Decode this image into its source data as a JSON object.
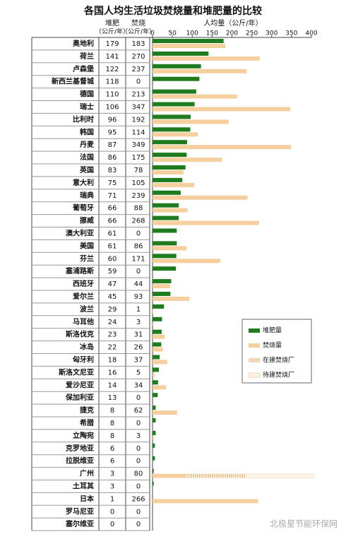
{
  "chart_data": {
    "type": "bar",
    "orientation": "horizontal",
    "title": "各国人均生活垃圾焚烧量和堆肥量的比较",
    "column_headers": [
      {
        "name": "堆肥",
        "unit": "（公斤/年）"
      },
      {
        "name": "焚烧",
        "unit": "（公斤/年）"
      }
    ],
    "xlabel": "人均量（公斤/年）",
    "xlim": [
      0,
      400
    ],
    "xticks": [
      0,
      50,
      100,
      150,
      200,
      250,
      300,
      350,
      400
    ],
    "categories": [
      "奥地利",
      "荷兰",
      "卢森堡",
      "新西兰基督城",
      "德国",
      "瑞士",
      "比利时",
      "韩国",
      "丹麦",
      "法国",
      "英国",
      "意大利",
      "瑞典",
      "葡萄牙",
      "挪威",
      "澳大利亚",
      "美国",
      "芬兰",
      "塞浦路斯",
      "西班牙",
      "爱尔兰",
      "波兰",
      "马耳他",
      "斯洛伐克",
      "冰岛",
      "匈牙利",
      "斯洛文尼亚",
      "爱沙尼亚",
      "保加利亚",
      "捷克",
      "希腊",
      "立陶宛",
      "克罗地亚",
      "拉脱维亚",
      "广州",
      "土耳其",
      "日本",
      "罗马尼亚",
      "塞尔维亚"
    ],
    "series": [
      {
        "name": "堆肥量",
        "color": "#1e7b1e",
        "values": [
          179,
          141,
          122,
          118,
          110,
          106,
          96,
          95,
          87,
          86,
          83,
          75,
          71,
          66,
          66,
          61,
          61,
          60,
          59,
          47,
          45,
          29,
          24,
          23,
          22,
          18,
          16,
          14,
          13,
          8,
          8,
          8,
          6,
          6,
          3,
          3,
          1,
          0,
          0
        ]
      },
      {
        "name": "焚烧量",
        "color": "#f5cf9e",
        "values": [
          183,
          270,
          237,
          0,
          213,
          347,
          192,
          114,
          349,
          175,
          78,
          105,
          239,
          88,
          268,
          0,
          86,
          171,
          0,
          44,
          93,
          1,
          3,
          31,
          26,
          37,
          5,
          34,
          0,
          62,
          0,
          3,
          0,
          0,
          80,
          0,
          266,
          0,
          0
        ]
      },
      {
        "name": "在建焚烧厂",
        "color": "#f0c896",
        "values": [
          null,
          null,
          null,
          null,
          null,
          null,
          null,
          null,
          null,
          null,
          null,
          null,
          null,
          null,
          null,
          null,
          null,
          null,
          null,
          null,
          null,
          null,
          null,
          null,
          null,
          null,
          null,
          null,
          null,
          null,
          null,
          null,
          null,
          null,
          155,
          null,
          null,
          null,
          null
        ]
      },
      {
        "name": "待建焚烧厂",
        "color": "#fdf3e4",
        "values": [
          null,
          null,
          null,
          null,
          null,
          null,
          null,
          null,
          null,
          null,
          null,
          null,
          null,
          null,
          null,
          null,
          null,
          null,
          null,
          null,
          null,
          null,
          null,
          null,
          null,
          null,
          null,
          null,
          null,
          null,
          null,
          null,
          null,
          null,
          172,
          null,
          null,
          null,
          null
        ]
      }
    ],
    "watermark": "北极星节能环保网"
  }
}
